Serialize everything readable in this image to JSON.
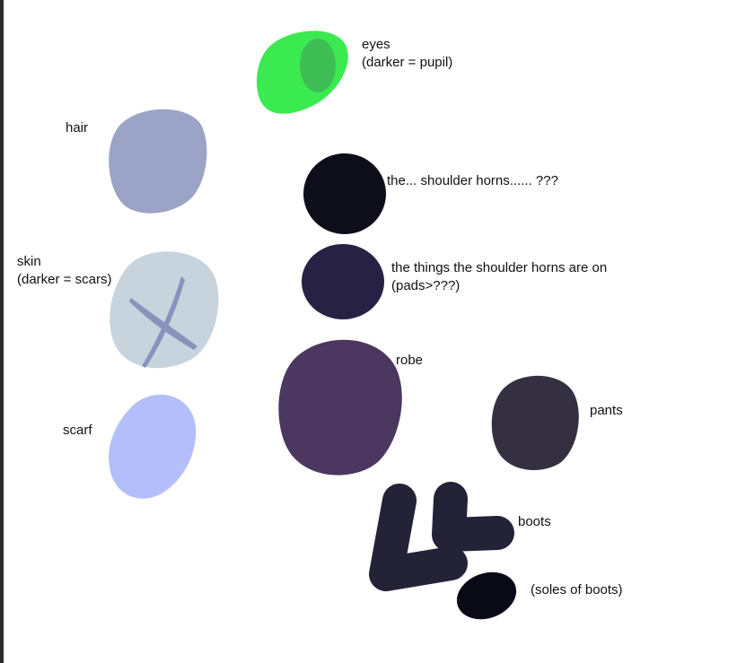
{
  "labels": {
    "eyes": "eyes",
    "eyes_note": "(darker = pupil)",
    "hair": "hair",
    "horns": "the... shoulder horns...... ???",
    "pads_line1": "the things the shoulder horns are on",
    "pads_line2": "(pads>???)",
    "skin": "skin",
    "skin_note": "(darker = scars)",
    "robe": "robe",
    "pants": "pants",
    "scarf": "scarf",
    "boots": "boots",
    "soles": "(soles of boots)"
  },
  "colors": {
    "eyes": "#3bea50",
    "pupil": "#3fbe55",
    "hair": "#9ba3c6",
    "horns": "#0e0d1a",
    "pads": "#272244",
    "skin": "#c7d3dd",
    "scars": "#8a92bc",
    "robe": "#4b375f",
    "pants": "#343041",
    "scarf": "#b4befa",
    "boots": "#242237",
    "soles": "#0a0a17"
  }
}
